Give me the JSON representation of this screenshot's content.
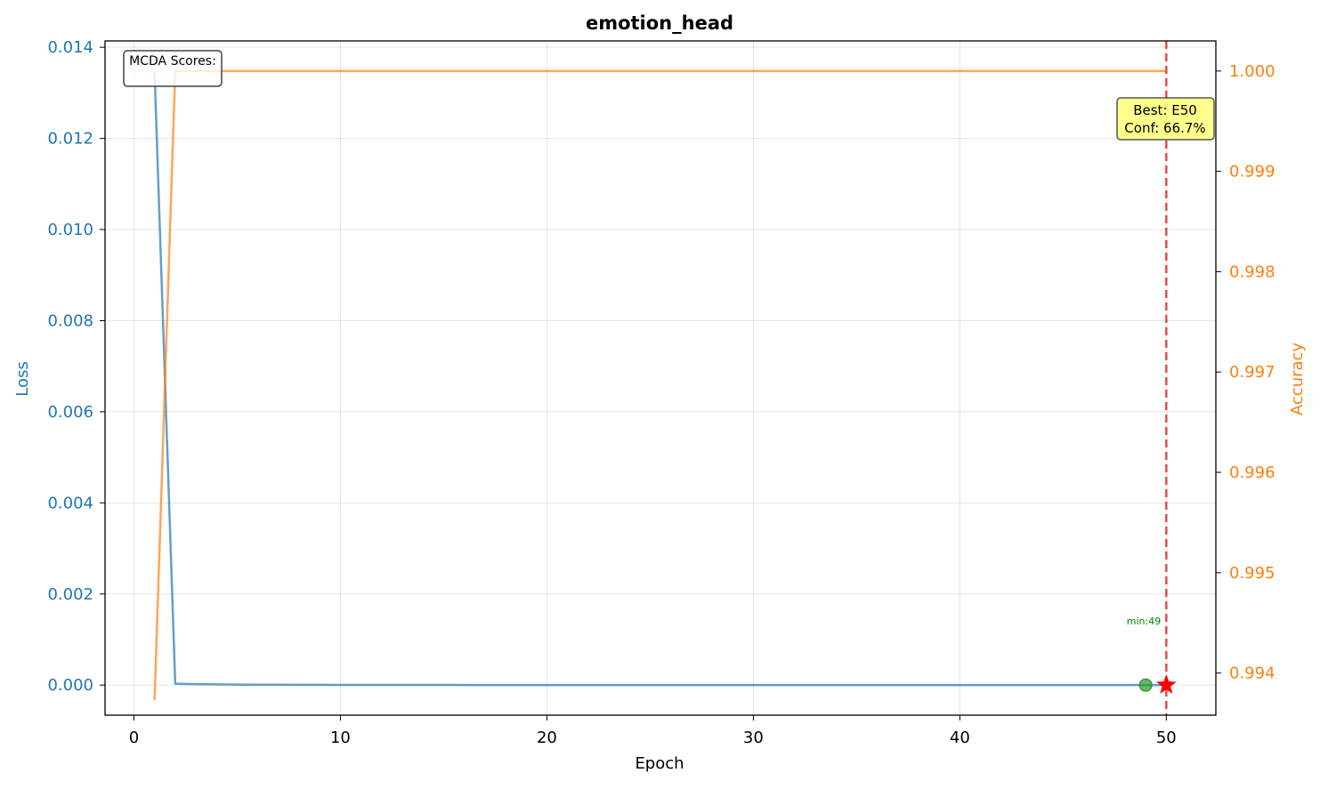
{
  "chart_data": {
    "type": "line",
    "title": "emotion_head",
    "xlabel": "Epoch",
    "ylabel_left": "Loss",
    "ylabel_right": "Accuracy",
    "xlim": [
      -1.4,
      52.4
    ],
    "ylim_left": [
      -0.00066,
      0.01414
    ],
    "ylim_right": [
      0.99358,
      1.0003
    ],
    "x_ticks": [
      0,
      10,
      20,
      30,
      40,
      50
    ],
    "y_left_ticks": [
      0.0,
      0.002,
      0.004,
      0.006,
      0.008,
      0.01,
      0.012,
      0.014
    ],
    "y_left_tick_labels": [
      "0.000",
      "0.002",
      "0.004",
      "0.006",
      "0.008",
      "0.010",
      "0.012",
      "0.014"
    ],
    "y_right_ticks": [
      0.994,
      0.995,
      0.996,
      0.997,
      0.998,
      0.999,
      1.0
    ],
    "y_right_tick_labels": [
      "0.994",
      "0.995",
      "0.996",
      "0.997",
      "0.998",
      "0.999",
      "1.000"
    ],
    "grid": true,
    "colors": {
      "loss": "#1f77b4",
      "accuracy": "#ff7f0e",
      "best_line": "#e53935",
      "min_marker": "#2ca02c",
      "best_marker": "#ff0000",
      "best_box": "#ffff80"
    },
    "series": [
      {
        "key": "loss",
        "axis": "left",
        "x": [
          1,
          2,
          3,
          4,
          5,
          6,
          7,
          8,
          9,
          10,
          11,
          12,
          13,
          14,
          15,
          16,
          17,
          18,
          19,
          20,
          21,
          22,
          23,
          24,
          25,
          26,
          27,
          28,
          29,
          30,
          31,
          32,
          33,
          34,
          35,
          36,
          37,
          38,
          39,
          40,
          41,
          42,
          43,
          44,
          45,
          46,
          47,
          48,
          49,
          50
        ],
        "values": [
          0.01345,
          3e-05,
          2e-05,
          1.5e-05,
          1.2e-05,
          1e-05,
          8e-06,
          7e-06,
          6e-06,
          5e-06,
          4.5e-06,
          4e-06,
          3.5e-06,
          3e-06,
          3e-06,
          2.5e-06,
          2.5e-06,
          2e-06,
          2e-06,
          2e-06,
          1.8e-06,
          1.6e-06,
          1.5e-06,
          1.4e-06,
          1.3e-06,
          1.2e-06,
          1.1e-06,
          1e-06,
          1e-06,
          1e-06,
          9e-07,
          9e-07,
          8e-07,
          8e-07,
          8e-07,
          7e-07,
          7e-07,
          7e-07,
          6e-07,
          6e-07,
          6e-07,
          6e-07,
          5e-07,
          5e-07,
          5e-07,
          5e-07,
          5e-07,
          4e-07,
          4e-07,
          4e-07
        ]
      },
      {
        "key": "accuracy",
        "axis": "right",
        "x": [
          1,
          2,
          3,
          4,
          5,
          6,
          7,
          8,
          9,
          10,
          11,
          12,
          13,
          14,
          15,
          16,
          17,
          18,
          19,
          20,
          21,
          22,
          23,
          24,
          25,
          26,
          27,
          28,
          29,
          30,
          31,
          32,
          33,
          34,
          35,
          36,
          37,
          38,
          39,
          40,
          41,
          42,
          43,
          44,
          45,
          46,
          47,
          48,
          49,
          50
        ],
        "values": [
          0.99373,
          1.0,
          1.0,
          1.0,
          1.0,
          1.0,
          1.0,
          1.0,
          1.0,
          1.0,
          1.0,
          1.0,
          1.0,
          1.0,
          1.0,
          1.0,
          1.0,
          1.0,
          1.0,
          1.0,
          1.0,
          1.0,
          1.0,
          1.0,
          1.0,
          1.0,
          1.0,
          1.0,
          1.0,
          1.0,
          1.0,
          1.0,
          1.0,
          1.0,
          1.0,
          1.0,
          1.0,
          1.0,
          1.0,
          1.0,
          1.0,
          1.0,
          1.0,
          1.0,
          1.0,
          1.0,
          1.0,
          1.0,
          1.0,
          1.0
        ]
      }
    ],
    "best_epoch": 50,
    "best_marker_loss": 0.0,
    "min_marker": {
      "x": 49,
      "loss": 0.0
    },
    "annotations": {
      "mcda_label": "MCDA Scores:",
      "best_label_line1": "Best: E50",
      "best_label_line2": "Conf: 66.7%",
      "min_label": "min:49"
    }
  }
}
